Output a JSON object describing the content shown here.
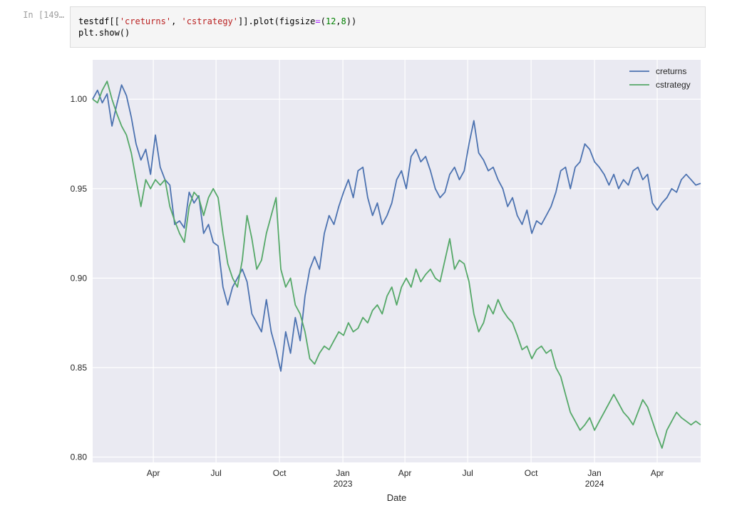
{
  "cell": {
    "prompt": "In [149…",
    "code": {
      "line1": {
        "name": "testdf",
        "open": "[[",
        "str1": "'creturns'",
        "comma": ", ",
        "str2": "'cstrategy'",
        "close": "]].plot(figsize",
        "eq": "=",
        "paren_open": "(",
        "num1": "12",
        "sep": ",",
        "num2": "8",
        "end": "))"
      },
      "line2": "plt.show()"
    }
  },
  "colors": {
    "plot_bg": "#eaeaf2",
    "grid": "#ffffff",
    "creturns": "#4c72b0",
    "cstrategy": "#55a868",
    "tick_text": "#262626"
  },
  "chart_data": {
    "type": "line",
    "xlabel": "Date",
    "ylabel": "",
    "title": "",
    "x_range": [
      "2022-01-03",
      "2024-06-03"
    ],
    "ylim": [
      0.797,
      1.022
    ],
    "yticks": [
      0.8,
      0.85,
      0.9,
      0.95,
      1.0
    ],
    "ytick_labels": [
      "0.80",
      "0.85",
      "0.90",
      "0.95",
      "1.00"
    ],
    "xticks": [
      {
        "date": "2022-04-01",
        "label": "Apr",
        "sub": ""
      },
      {
        "date": "2022-07-01",
        "label": "Jul",
        "sub": ""
      },
      {
        "date": "2022-10-01",
        "label": "Oct",
        "sub": ""
      },
      {
        "date": "2023-01-01",
        "label": "Jan",
        "sub": "2023"
      },
      {
        "date": "2023-04-01",
        "label": "Apr",
        "sub": ""
      },
      {
        "date": "2023-07-01",
        "label": "Jul",
        "sub": ""
      },
      {
        "date": "2023-10-01",
        "label": "Oct",
        "sub": ""
      },
      {
        "date": "2024-01-01",
        "label": "Jan",
        "sub": "2024"
      },
      {
        "date": "2024-04-01",
        "label": "Apr",
        "sub": ""
      }
    ],
    "grid": true,
    "legend_position": "top-right",
    "series": [
      {
        "name": "creturns",
        "color": "#4c72b0",
        "points": [
          [
            "2022-01-03",
            1.0
          ],
          [
            "2022-01-10",
            1.005
          ],
          [
            "2022-01-17",
            0.998
          ],
          [
            "2022-01-24",
            1.003
          ],
          [
            "2022-01-31",
            0.985
          ],
          [
            "2022-02-07",
            0.997
          ],
          [
            "2022-02-14",
            1.008
          ],
          [
            "2022-02-21",
            1.002
          ],
          [
            "2022-02-28",
            0.99
          ],
          [
            "2022-03-07",
            0.975
          ],
          [
            "2022-03-14",
            0.966
          ],
          [
            "2022-03-21",
            0.972
          ],
          [
            "2022-03-28",
            0.958
          ],
          [
            "2022-04-04",
            0.98
          ],
          [
            "2022-04-11",
            0.962
          ],
          [
            "2022-04-18",
            0.955
          ],
          [
            "2022-04-25",
            0.952
          ],
          [
            "2022-05-02",
            0.93
          ],
          [
            "2022-05-09",
            0.932
          ],
          [
            "2022-05-16",
            0.928
          ],
          [
            "2022-05-23",
            0.948
          ],
          [
            "2022-05-30",
            0.942
          ],
          [
            "2022-06-06",
            0.946
          ],
          [
            "2022-06-13",
            0.925
          ],
          [
            "2022-06-20",
            0.93
          ],
          [
            "2022-06-27",
            0.92
          ],
          [
            "2022-07-04",
            0.918
          ],
          [
            "2022-07-11",
            0.895
          ],
          [
            "2022-07-18",
            0.885
          ],
          [
            "2022-07-25",
            0.895
          ],
          [
            "2022-08-01",
            0.9
          ],
          [
            "2022-08-08",
            0.905
          ],
          [
            "2022-08-15",
            0.898
          ],
          [
            "2022-08-22",
            0.88
          ],
          [
            "2022-08-29",
            0.875
          ],
          [
            "2022-09-05",
            0.87
          ],
          [
            "2022-09-12",
            0.888
          ],
          [
            "2022-09-19",
            0.87
          ],
          [
            "2022-09-26",
            0.86
          ],
          [
            "2022-10-03",
            0.848
          ],
          [
            "2022-10-10",
            0.87
          ],
          [
            "2022-10-17",
            0.858
          ],
          [
            "2022-10-24",
            0.878
          ],
          [
            "2022-10-31",
            0.865
          ],
          [
            "2022-11-07",
            0.89
          ],
          [
            "2022-11-14",
            0.905
          ],
          [
            "2022-11-21",
            0.912
          ],
          [
            "2022-11-28",
            0.905
          ],
          [
            "2022-12-05",
            0.925
          ],
          [
            "2022-12-12",
            0.935
          ],
          [
            "2022-12-19",
            0.93
          ],
          [
            "2022-12-26",
            0.94
          ],
          [
            "2023-01-02",
            0.948
          ],
          [
            "2023-01-09",
            0.955
          ],
          [
            "2023-01-16",
            0.945
          ],
          [
            "2023-01-23",
            0.96
          ],
          [
            "2023-01-30",
            0.962
          ],
          [
            "2023-02-06",
            0.945
          ],
          [
            "2023-02-13",
            0.935
          ],
          [
            "2023-02-20",
            0.942
          ],
          [
            "2023-02-27",
            0.93
          ],
          [
            "2023-03-06",
            0.935
          ],
          [
            "2023-03-13",
            0.942
          ],
          [
            "2023-03-20",
            0.955
          ],
          [
            "2023-03-27",
            0.96
          ],
          [
            "2023-04-03",
            0.95
          ],
          [
            "2023-04-10",
            0.968
          ],
          [
            "2023-04-17",
            0.972
          ],
          [
            "2023-04-24",
            0.965
          ],
          [
            "2023-05-01",
            0.968
          ],
          [
            "2023-05-08",
            0.96
          ],
          [
            "2023-05-15",
            0.95
          ],
          [
            "2023-05-22",
            0.945
          ],
          [
            "2023-05-29",
            0.948
          ],
          [
            "2023-06-05",
            0.958
          ],
          [
            "2023-06-12",
            0.962
          ],
          [
            "2023-06-19",
            0.955
          ],
          [
            "2023-06-26",
            0.96
          ],
          [
            "2023-07-03",
            0.975
          ],
          [
            "2023-07-10",
            0.988
          ],
          [
            "2023-07-17",
            0.97
          ],
          [
            "2023-07-24",
            0.966
          ],
          [
            "2023-07-31",
            0.96
          ],
          [
            "2023-08-07",
            0.962
          ],
          [
            "2023-08-14",
            0.955
          ],
          [
            "2023-08-21",
            0.95
          ],
          [
            "2023-08-28",
            0.94
          ],
          [
            "2023-09-04",
            0.945
          ],
          [
            "2023-09-11",
            0.935
          ],
          [
            "2023-09-18",
            0.93
          ],
          [
            "2023-09-25",
            0.938
          ],
          [
            "2023-10-02",
            0.925
          ],
          [
            "2023-10-09",
            0.932
          ],
          [
            "2023-10-16",
            0.93
          ],
          [
            "2023-10-23",
            0.935
          ],
          [
            "2023-10-30",
            0.94
          ],
          [
            "2023-11-06",
            0.948
          ],
          [
            "2023-11-13",
            0.96
          ],
          [
            "2023-11-20",
            0.962
          ],
          [
            "2023-11-27",
            0.95
          ],
          [
            "2023-12-04",
            0.962
          ],
          [
            "2023-12-11",
            0.965
          ],
          [
            "2023-12-18",
            0.975
          ],
          [
            "2023-12-25",
            0.972
          ],
          [
            "2024-01-01",
            0.965
          ],
          [
            "2024-01-08",
            0.962
          ],
          [
            "2024-01-15",
            0.958
          ],
          [
            "2024-01-22",
            0.952
          ],
          [
            "2024-01-29",
            0.958
          ],
          [
            "2024-02-05",
            0.95
          ],
          [
            "2024-02-12",
            0.955
          ],
          [
            "2024-02-19",
            0.952
          ],
          [
            "2024-02-26",
            0.96
          ],
          [
            "2024-03-04",
            0.962
          ],
          [
            "2024-03-11",
            0.955
          ],
          [
            "2024-03-18",
            0.958
          ],
          [
            "2024-03-25",
            0.942
          ],
          [
            "2024-04-01",
            0.938
          ],
          [
            "2024-04-08",
            0.942
          ],
          [
            "2024-04-15",
            0.945
          ],
          [
            "2024-04-22",
            0.95
          ],
          [
            "2024-04-29",
            0.948
          ],
          [
            "2024-05-06",
            0.955
          ],
          [
            "2024-05-13",
            0.958
          ],
          [
            "2024-05-20",
            0.955
          ],
          [
            "2024-05-27",
            0.952
          ],
          [
            "2024-06-03",
            0.953
          ]
        ]
      },
      {
        "name": "cstrategy",
        "color": "#55a868",
        "points": [
          [
            "2022-01-03",
            1.0
          ],
          [
            "2022-01-10",
            0.998
          ],
          [
            "2022-01-17",
            1.005
          ],
          [
            "2022-01-24",
            1.01
          ],
          [
            "2022-01-31",
            1.0
          ],
          [
            "2022-02-07",
            0.992
          ],
          [
            "2022-02-14",
            0.985
          ],
          [
            "2022-02-21",
            0.98
          ],
          [
            "2022-02-28",
            0.97
          ],
          [
            "2022-03-07",
            0.955
          ],
          [
            "2022-03-14",
            0.94
          ],
          [
            "2022-03-21",
            0.955
          ],
          [
            "2022-03-28",
            0.95
          ],
          [
            "2022-04-04",
            0.955
          ],
          [
            "2022-04-11",
            0.952
          ],
          [
            "2022-04-18",
            0.955
          ],
          [
            "2022-04-25",
            0.94
          ],
          [
            "2022-05-02",
            0.932
          ],
          [
            "2022-05-09",
            0.925
          ],
          [
            "2022-05-16",
            0.92
          ],
          [
            "2022-05-23",
            0.94
          ],
          [
            "2022-05-30",
            0.948
          ],
          [
            "2022-06-06",
            0.945
          ],
          [
            "2022-06-13",
            0.935
          ],
          [
            "2022-06-20",
            0.945
          ],
          [
            "2022-06-27",
            0.95
          ],
          [
            "2022-07-04",
            0.945
          ],
          [
            "2022-07-11",
            0.925
          ],
          [
            "2022-07-18",
            0.908
          ],
          [
            "2022-07-25",
            0.9
          ],
          [
            "2022-08-01",
            0.895
          ],
          [
            "2022-08-08",
            0.91
          ],
          [
            "2022-08-15",
            0.935
          ],
          [
            "2022-08-22",
            0.922
          ],
          [
            "2022-08-29",
            0.905
          ],
          [
            "2022-09-05",
            0.91
          ],
          [
            "2022-09-12",
            0.925
          ],
          [
            "2022-09-19",
            0.935
          ],
          [
            "2022-09-26",
            0.945
          ],
          [
            "2022-10-03",
            0.905
          ],
          [
            "2022-10-10",
            0.895
          ],
          [
            "2022-10-17",
            0.9
          ],
          [
            "2022-10-24",
            0.885
          ],
          [
            "2022-10-31",
            0.88
          ],
          [
            "2022-11-07",
            0.87
          ],
          [
            "2022-11-14",
            0.855
          ],
          [
            "2022-11-21",
            0.852
          ],
          [
            "2022-11-28",
            0.858
          ],
          [
            "2022-12-05",
            0.862
          ],
          [
            "2022-12-12",
            0.86
          ],
          [
            "2022-12-19",
            0.865
          ],
          [
            "2022-12-26",
            0.87
          ],
          [
            "2023-01-02",
            0.868
          ],
          [
            "2023-01-09",
            0.875
          ],
          [
            "2023-01-16",
            0.87
          ],
          [
            "2023-01-23",
            0.872
          ],
          [
            "2023-01-30",
            0.878
          ],
          [
            "2023-02-06",
            0.875
          ],
          [
            "2023-02-13",
            0.882
          ],
          [
            "2023-02-20",
            0.885
          ],
          [
            "2023-02-27",
            0.88
          ],
          [
            "2023-03-06",
            0.89
          ],
          [
            "2023-03-13",
            0.895
          ],
          [
            "2023-03-20",
            0.885
          ],
          [
            "2023-03-27",
            0.895
          ],
          [
            "2023-04-03",
            0.9
          ],
          [
            "2023-04-10",
            0.895
          ],
          [
            "2023-04-17",
            0.905
          ],
          [
            "2023-04-24",
            0.898
          ],
          [
            "2023-05-01",
            0.902
          ],
          [
            "2023-05-08",
            0.905
          ],
          [
            "2023-05-15",
            0.9
          ],
          [
            "2023-05-22",
            0.898
          ],
          [
            "2023-05-29",
            0.91
          ],
          [
            "2023-06-05",
            0.922
          ],
          [
            "2023-06-12",
            0.905
          ],
          [
            "2023-06-19",
            0.91
          ],
          [
            "2023-06-26",
            0.908
          ],
          [
            "2023-07-03",
            0.898
          ],
          [
            "2023-07-10",
            0.88
          ],
          [
            "2023-07-17",
            0.87
          ],
          [
            "2023-07-24",
            0.875
          ],
          [
            "2023-07-31",
            0.885
          ],
          [
            "2023-08-07",
            0.88
          ],
          [
            "2023-08-14",
            0.888
          ],
          [
            "2023-08-21",
            0.882
          ],
          [
            "2023-08-28",
            0.878
          ],
          [
            "2023-09-04",
            0.875
          ],
          [
            "2023-09-11",
            0.868
          ],
          [
            "2023-09-18",
            0.86
          ],
          [
            "2023-09-25",
            0.862
          ],
          [
            "2023-10-02",
            0.855
          ],
          [
            "2023-10-09",
            0.86
          ],
          [
            "2023-10-16",
            0.862
          ],
          [
            "2023-10-23",
            0.858
          ],
          [
            "2023-10-30",
            0.86
          ],
          [
            "2023-11-06",
            0.85
          ],
          [
            "2023-11-13",
            0.845
          ],
          [
            "2023-11-20",
            0.835
          ],
          [
            "2023-11-27",
            0.825
          ],
          [
            "2023-12-04",
            0.82
          ],
          [
            "2023-12-11",
            0.815
          ],
          [
            "2023-12-18",
            0.818
          ],
          [
            "2023-12-25",
            0.822
          ],
          [
            "2024-01-01",
            0.815
          ],
          [
            "2024-01-08",
            0.82
          ],
          [
            "2024-01-15",
            0.825
          ],
          [
            "2024-01-22",
            0.83
          ],
          [
            "2024-01-29",
            0.835
          ],
          [
            "2024-02-05",
            0.83
          ],
          [
            "2024-02-12",
            0.825
          ],
          [
            "2024-02-19",
            0.822
          ],
          [
            "2024-02-26",
            0.818
          ],
          [
            "2024-03-04",
            0.825
          ],
          [
            "2024-03-11",
            0.832
          ],
          [
            "2024-03-18",
            0.828
          ],
          [
            "2024-03-25",
            0.82
          ],
          [
            "2024-04-01",
            0.812
          ],
          [
            "2024-04-08",
            0.805
          ],
          [
            "2024-04-15",
            0.815
          ],
          [
            "2024-04-22",
            0.82
          ],
          [
            "2024-04-29",
            0.825
          ],
          [
            "2024-05-06",
            0.822
          ],
          [
            "2024-05-13",
            0.82
          ],
          [
            "2024-05-20",
            0.818
          ],
          [
            "2024-05-27",
            0.82
          ],
          [
            "2024-06-03",
            0.818
          ]
        ]
      }
    ]
  }
}
